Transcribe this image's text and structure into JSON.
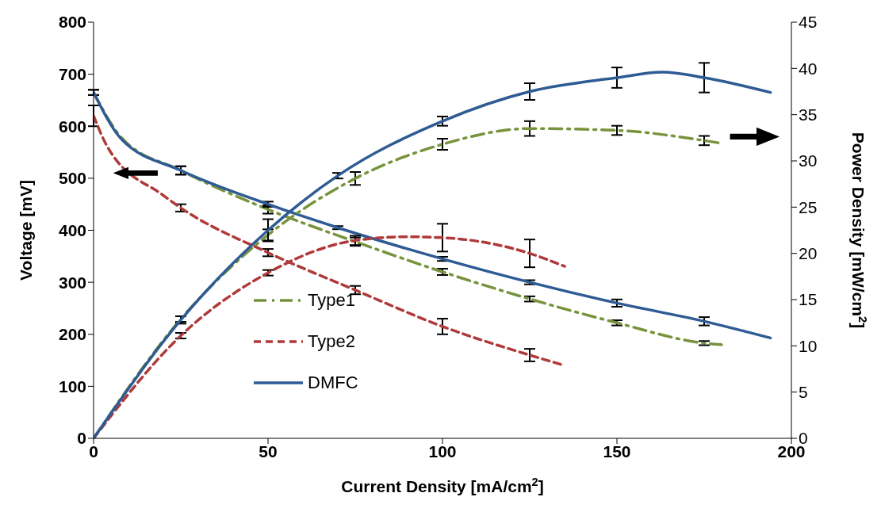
{
  "chart_data": {
    "type": "line",
    "xlabel": "Current Density [mA/cm$^{2}$]",
    "ylabel": "Voltage [mV]",
    "y2label": "Power Density [mW/cm$^{2}$]",
    "xlim": [
      0,
      200
    ],
    "xticks": [
      0,
      50,
      100,
      150,
      200
    ],
    "ylim": [
      0,
      800
    ],
    "yticks": [
      0,
      100,
      200,
      300,
      400,
      500,
      600,
      700,
      800
    ],
    "y2lim": [
      0,
      45
    ],
    "y2ticks": [
      0,
      5,
      10,
      15,
      20,
      25,
      30,
      35,
      40,
      45
    ],
    "legend": "bottom left",
    "marker": "none",
    "series": [
      {
        "name": "Type1",
        "color": "#77933c",
        "line_style": "dashdot",
        "x": [
          0,
          8,
          25,
          50,
          75,
          100,
          125,
          150,
          175,
          180
        ],
        "values": [
          665,
          578,
          515,
          440,
          378,
          320,
          268,
          222,
          183,
          180
        ],
        "errors": [
          5,
          null,
          8,
          8,
          8,
          6,
          5,
          5,
          4,
          null
        ]
      },
      {
        "name": "Type2",
        "color": "#b03a3a",
        "line_style": "dashed",
        "x": [
          0,
          4,
          20,
          25,
          50,
          75,
          100,
          125,
          135
        ],
        "values": [
          620,
          560,
          467,
          443,
          357,
          285,
          215,
          160,
          140
        ],
        "errors": [
          20,
          null,
          null,
          7,
          7,
          8,
          15,
          12,
          null
        ]
      },
      {
        "name": "DMFC",
        "color": "#2e5b94",
        "line_style": "solid",
        "x": [
          0,
          8,
          25,
          50,
          70,
          100,
          125,
          150,
          175,
          194
        ],
        "values": [
          665,
          575,
          515,
          450,
          405,
          345,
          300,
          260,
          225,
          193
        ],
        "errors": [
          5,
          null,
          8,
          5,
          3,
          4,
          4,
          7,
          8,
          null
        ]
      },
      {
        "color": "#77933c",
        "line_style": "dashdot",
        "axis": "y2",
        "x": [
          0,
          25,
          50,
          75,
          100,
          125,
          150,
          175,
          180
        ],
        "values": [
          0,
          12.9,
          22,
          28.1,
          31.8,
          33.5,
          33.3,
          32.2,
          31.9
        ],
        "errors": [
          null,
          0.3,
          0.6,
          0.7,
          0.6,
          0.8,
          0.5,
          0.5,
          null
        ]
      },
      {
        "color": "#b03a3a",
        "line_style": "dashed",
        "axis": "y2",
        "x": [
          0,
          25,
          50,
          75,
          90,
          100,
          125,
          135
        ],
        "values": [
          0,
          11.1,
          17.9,
          21.4,
          21.8,
          21.7,
          20,
          18.6
        ],
        "errors": [
          null,
          0.3,
          0.3,
          0.5,
          null,
          1.5,
          1.5,
          null
        ]
      },
      {
        "color": "#2e5b94",
        "line_style": "solid",
        "axis": "y2",
        "x": [
          0,
          25,
          50,
          70,
          100,
          125,
          150,
          163,
          175,
          194
        ],
        "values": [
          0,
          12.8,
          22.5,
          28.4,
          34.3,
          37.5,
          39,
          39.6,
          39,
          37.4
        ],
        "errors": [
          null,
          0.4,
          1.2,
          0.3,
          0.5,
          0.9,
          1.1,
          null,
          1.6,
          null
        ]
      }
    ]
  }
}
